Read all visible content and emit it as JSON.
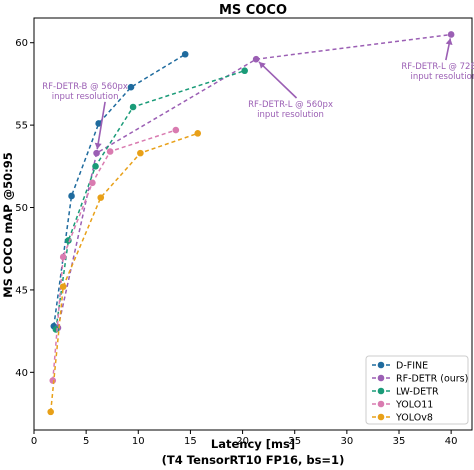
{
  "chart_data": {
    "type": "line",
    "title": "MS COCO",
    "xlabel": "Latency [ms]",
    "xlabel_line2": "(T4 TensorRT10 FP16, bs=1)",
    "ylabel": "MS COCO mAP @50:95",
    "xlim": [
      0,
      42
    ],
    "ylim": [
      36.5,
      61.5
    ],
    "xticks": [
      0,
      5,
      10,
      15,
      20,
      25,
      30,
      35,
      40
    ],
    "yticks": [
      40,
      45,
      50,
      55,
      60
    ],
    "grid": false,
    "legend_position": "bottom-right",
    "series": [
      {
        "name": "D-FINE",
        "color": "#1f6b9e",
        "x": [
          1.9,
          3.6,
          6.2,
          9.3,
          14.5
        ],
        "y": [
          42.8,
          50.7,
          55.1,
          57.3,
          59.3
        ]
      },
      {
        "name": "RF-DETR (ours)",
        "color": "#9b5fb4",
        "x": [
          2.3,
          6.0,
          21.3,
          40.0
        ],
        "y": [
          42.7,
          53.3,
          59.0,
          60.5
        ]
      },
      {
        "name": "LW-DETR",
        "color": "#1a9b78",
        "x": [
          2.1,
          3.3,
          5.9,
          9.5,
          20.2
        ],
        "y": [
          42.6,
          48.0,
          52.5,
          56.1,
          58.3
        ]
      },
      {
        "name": "YOLO11",
        "color": "#d97bb0",
        "x": [
          1.8,
          2.8,
          5.6,
          7.3,
          13.6
        ],
        "y": [
          39.5,
          47.0,
          51.5,
          53.4,
          54.7
        ]
      },
      {
        "name": "YOLOv8",
        "color": "#e8a018",
        "x": [
          1.6,
          2.8,
          6.4,
          10.2,
          15.7
        ],
        "y": [
          37.6,
          45.2,
          50.6,
          53.3,
          54.5
        ]
      }
    ],
    "annotations": [
      {
        "line1": "RF-DETR-B @ 560px",
        "line2": "input resolution",
        "target_x": 6.0,
        "target_y": 53.3,
        "text_x": 4.9,
        "text_y": 57.2
      },
      {
        "line1": "RF-DETR-L @ 560px",
        "line2": "input resolution",
        "target_x": 21.3,
        "target_y": 59.0,
        "text_x": 24.6,
        "text_y": 56.1
      },
      {
        "line1": "RF-DETR-L @ 728px",
        "line2": "input resolution",
        "target_x": 40.0,
        "target_y": 60.5,
        "text_x": 39.3,
        "text_y": 58.4
      }
    ]
  }
}
